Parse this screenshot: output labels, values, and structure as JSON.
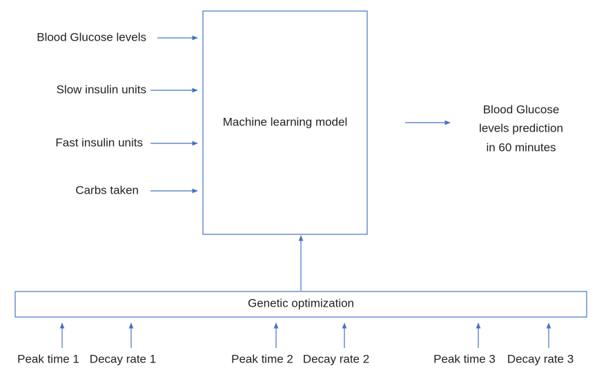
{
  "inputs": [
    "Blood Glucose levels",
    "Slow insulin units",
    "Fast insulin units",
    "Carbs taken"
  ],
  "model": {
    "label": "Machine learning model"
  },
  "output": {
    "lines": [
      "Blood Glucose",
      "levels prediction",
      "in 60 minutes"
    ]
  },
  "optimizer": {
    "label": "Genetic optimization"
  },
  "parameters": [
    "Peak time 1",
    "Decay rate 1",
    "Peak time 2",
    "Decay rate 2",
    "Peak time 3",
    "Decay rate 3"
  ]
}
